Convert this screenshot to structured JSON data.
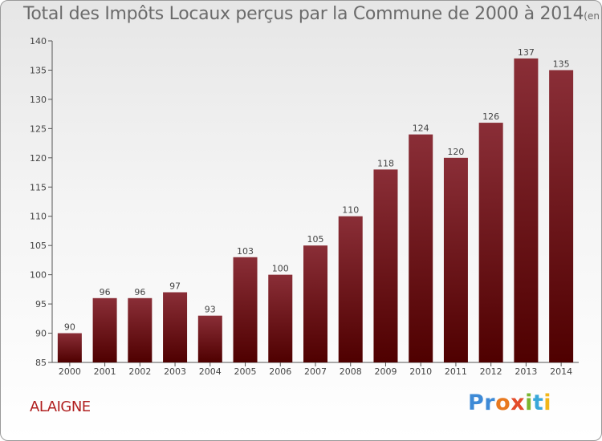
{
  "title": "Total des Impôts Locaux perçus par la Commune de 2000 à 2014",
  "unit": "(en milliers d'€)",
  "commune": "ALAIGNE",
  "logo": {
    "p1": "Pr",
    "p2": "o",
    "p3": "x",
    "p4": "i",
    "p5": "t",
    "p6": "i"
  },
  "colors": {
    "bar_top": "#8a2e37",
    "bar_bottom": "#4f0000",
    "title": "#6b6b6b",
    "commune": "#b01f1f"
  },
  "chart_data": {
    "type": "bar",
    "title": "Total des Impôts Locaux perçus par la Commune de 2000 à 2014",
    "xlabel": "",
    "ylabel": "(en milliers d'€)",
    "categories": [
      "2000",
      "2001",
      "2002",
      "2003",
      "2004",
      "2005",
      "2006",
      "2007",
      "2008",
      "2009",
      "2010",
      "2011",
      "2012",
      "2013",
      "2014"
    ],
    "values": [
      90,
      96,
      96,
      97,
      93,
      103,
      100,
      105,
      110,
      118,
      124,
      120,
      126,
      137,
      135
    ],
    "ylim": [
      85,
      140
    ],
    "yticks": [
      85,
      90,
      95,
      100,
      105,
      110,
      115,
      120,
      125,
      130,
      135,
      140
    ],
    "grid": false,
    "legend": "none"
  }
}
